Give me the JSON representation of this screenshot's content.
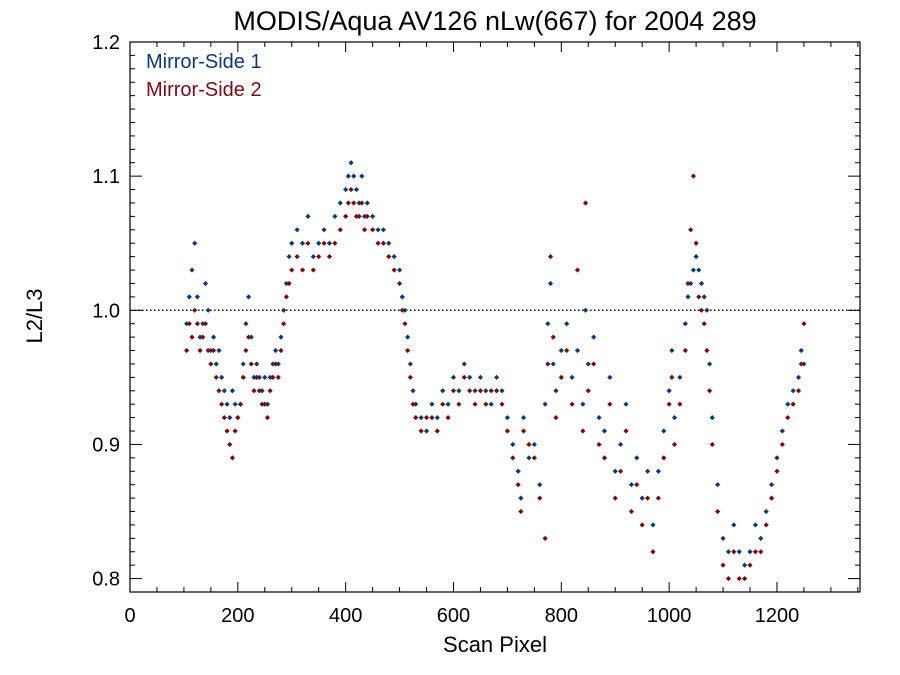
{
  "chart_data": {
    "type": "scatter",
    "title": "MODIS/Aqua AV126 nLw(667) for 2004 289",
    "xlabel": "Scan Pixel",
    "ylabel": "L2/L3",
    "xlim": [
      0,
      1354
    ],
    "ylim": [
      0.79,
      1.2
    ],
    "xticks": [
      0,
      200,
      400,
      600,
      800,
      1000,
      1200
    ],
    "xtick_labels": [
      "0",
      "200",
      "400",
      "600",
      "800",
      "1000",
      "1200"
    ],
    "yticks": [
      0.8,
      0.9,
      1.0,
      1.1,
      1.2
    ],
    "ytick_labels": [
      "0.8",
      "0.9",
      "1.0",
      "1.1",
      "1.2"
    ],
    "reference_line": 1.0,
    "grid": false,
    "legend_position": "top-left",
    "series": [
      {
        "name": "Mirror-Side 1",
        "color": "#0a3a7a",
        "points": [
          [
            105,
            0.99
          ],
          [
            110,
            1.01
          ],
          [
            115,
            1.03
          ],
          [
            120,
            1.05
          ],
          [
            125,
            1.01
          ],
          [
            130,
            0.98
          ],
          [
            135,
            0.99
          ],
          [
            140,
            1.02
          ],
          [
            145,
            1.0
          ],
          [
            150,
            0.97
          ],
          [
            155,
            0.98
          ],
          [
            160,
            0.96
          ],
          [
            165,
            0.97
          ],
          [
            170,
            0.95
          ],
          [
            175,
            0.94
          ],
          [
            180,
            0.93
          ],
          [
            185,
            0.92
          ],
          [
            190,
            0.94
          ],
          [
            195,
            0.93
          ],
          [
            200,
            0.92
          ],
          [
            205,
            0.93
          ],
          [
            210,
            0.96
          ],
          [
            215,
            0.99
          ],
          [
            220,
            1.01
          ],
          [
            225,
            0.98
          ],
          [
            230,
            0.95
          ],
          [
            235,
            0.96
          ],
          [
            240,
            0.95
          ],
          [
            245,
            0.94
          ],
          [
            250,
            0.95
          ],
          [
            255,
            0.93
          ],
          [
            260,
            0.95
          ],
          [
            265,
            0.96
          ],
          [
            270,
            0.97
          ],
          [
            275,
            0.96
          ],
          [
            280,
            0.98
          ],
          [
            285,
            1.0
          ],
          [
            290,
            1.02
          ],
          [
            295,
            1.04
          ],
          [
            300,
            1.05
          ],
          [
            310,
            1.06
          ],
          [
            320,
            1.05
          ],
          [
            330,
            1.07
          ],
          [
            340,
            1.04
          ],
          [
            350,
            1.05
          ],
          [
            360,
            1.06
          ],
          [
            370,
            1.05
          ],
          [
            380,
            1.07
          ],
          [
            390,
            1.08
          ],
          [
            400,
            1.09
          ],
          [
            405,
            1.1
          ],
          [
            410,
            1.11
          ],
          [
            415,
            1.1
          ],
          [
            420,
            1.09
          ],
          [
            425,
            1.08
          ],
          [
            430,
            1.1
          ],
          [
            435,
            1.07
          ],
          [
            440,
            1.08
          ],
          [
            450,
            1.07
          ],
          [
            460,
            1.06
          ],
          [
            470,
            1.06
          ],
          [
            480,
            1.05
          ],
          [
            490,
            1.04
          ],
          [
            500,
            1.03
          ],
          [
            505,
            1.01
          ],
          [
            510,
            1.0
          ],
          [
            515,
            0.98
          ],
          [
            520,
            0.96
          ],
          [
            525,
            0.94
          ],
          [
            530,
            0.93
          ],
          [
            540,
            0.92
          ],
          [
            550,
            0.91
          ],
          [
            560,
            0.93
          ],
          [
            570,
            0.92
          ],
          [
            580,
            0.94
          ],
          [
            590,
            0.93
          ],
          [
            600,
            0.95
          ],
          [
            610,
            0.94
          ],
          [
            620,
            0.96
          ],
          [
            630,
            0.95
          ],
          [
            640,
            0.94
          ],
          [
            650,
            0.95
          ],
          [
            660,
            0.94
          ],
          [
            670,
            0.93
          ],
          [
            680,
            0.95
          ],
          [
            690,
            0.94
          ],
          [
            700,
            0.92
          ],
          [
            710,
            0.9
          ],
          [
            720,
            0.88
          ],
          [
            725,
            0.86
          ],
          [
            730,
            0.92
          ],
          [
            740,
            0.89
          ],
          [
            750,
            0.9
          ],
          [
            760,
            0.87
          ],
          [
            770,
            0.93
          ],
          [
            775,
            0.99
          ],
          [
            780,
            1.02
          ],
          [
            785,
            0.96
          ],
          [
            790,
            0.94
          ],
          [
            800,
            0.97
          ],
          [
            810,
            0.99
          ],
          [
            820,
            0.95
          ],
          [
            830,
            0.97
          ],
          [
            840,
            0.93
          ],
          [
            845,
            1.0
          ],
          [
            850,
            0.96
          ],
          [
            860,
            0.98
          ],
          [
            870,
            0.92
          ],
          [
            880,
            0.91
          ],
          [
            890,
            0.95
          ],
          [
            900,
            0.88
          ],
          [
            910,
            0.9
          ],
          [
            920,
            0.93
          ],
          [
            930,
            0.87
          ],
          [
            940,
            0.89
          ],
          [
            950,
            0.86
          ],
          [
            960,
            0.88
          ],
          [
            970,
            0.84
          ],
          [
            980,
            0.88
          ],
          [
            990,
            0.91
          ],
          [
            1000,
            0.94
          ],
          [
            1005,
            0.97
          ],
          [
            1010,
            0.92
          ],
          [
            1020,
            0.95
          ],
          [
            1030,
            0.99
          ],
          [
            1035,
            1.01
          ],
          [
            1040,
            1.02
          ],
          [
            1045,
            1.03
          ],
          [
            1050,
            1.04
          ],
          [
            1055,
            1.03
          ],
          [
            1060,
            1.02
          ],
          [
            1065,
            1.01
          ],
          [
            1070,
            1.0
          ],
          [
            1075,
            0.96
          ],
          [
            1080,
            0.92
          ],
          [
            1090,
            0.87
          ],
          [
            1100,
            0.83
          ],
          [
            1110,
            0.82
          ],
          [
            1120,
            0.84
          ],
          [
            1130,
            0.82
          ],
          [
            1140,
            0.81
          ],
          [
            1150,
            0.82
          ],
          [
            1160,
            0.84
          ],
          [
            1170,
            0.83
          ],
          [
            1180,
            0.85
          ],
          [
            1190,
            0.87
          ],
          [
            1200,
            0.89
          ],
          [
            1210,
            0.91
          ],
          [
            1220,
            0.93
          ],
          [
            1230,
            0.94
          ],
          [
            1240,
            0.95
          ],
          [
            1245,
            0.97
          ],
          [
            1250,
            0.96
          ]
        ]
      },
      {
        "name": "Mirror-Side 2",
        "color": "#7a0a12",
        "points": [
          [
            105,
            0.97
          ],
          [
            110,
            0.99
          ],
          [
            115,
            0.98
          ],
          [
            120,
            1.0
          ],
          [
            125,
            0.99
          ],
          [
            130,
            0.97
          ],
          [
            135,
            0.98
          ],
          [
            140,
            0.99
          ],
          [
            145,
            0.97
          ],
          [
            150,
            0.96
          ],
          [
            155,
            0.97
          ],
          [
            160,
            0.95
          ],
          [
            165,
            0.94
          ],
          [
            170,
            0.93
          ],
          [
            175,
            0.92
          ],
          [
            180,
            0.91
          ],
          [
            185,
            0.9
          ],
          [
            190,
            0.89
          ],
          [
            195,
            0.91
          ],
          [
            200,
            0.92
          ],
          [
            205,
            0.93
          ],
          [
            210,
            0.95
          ],
          [
            215,
            0.97
          ],
          [
            220,
            0.98
          ],
          [
            225,
            0.96
          ],
          [
            230,
            0.94
          ],
          [
            235,
            0.95
          ],
          [
            240,
            0.94
          ],
          [
            245,
            0.93
          ],
          [
            250,
            0.93
          ],
          [
            255,
            0.92
          ],
          [
            260,
            0.94
          ],
          [
            265,
            0.95
          ],
          [
            270,
            0.96
          ],
          [
            275,
            0.95
          ],
          [
            280,
            0.97
          ],
          [
            285,
            0.99
          ],
          [
            290,
            1.01
          ],
          [
            295,
            1.02
          ],
          [
            300,
            1.03
          ],
          [
            310,
            1.04
          ],
          [
            320,
            1.03
          ],
          [
            330,
            1.05
          ],
          [
            340,
            1.03
          ],
          [
            350,
            1.04
          ],
          [
            360,
            1.05
          ],
          [
            370,
            1.04
          ],
          [
            380,
            1.05
          ],
          [
            390,
            1.06
          ],
          [
            400,
            1.07
          ],
          [
            405,
            1.08
          ],
          [
            410,
            1.09
          ],
          [
            415,
            1.08
          ],
          [
            420,
            1.07
          ],
          [
            425,
            1.07
          ],
          [
            430,
            1.08
          ],
          [
            435,
            1.06
          ],
          [
            440,
            1.07
          ],
          [
            450,
            1.06
          ],
          [
            460,
            1.05
          ],
          [
            470,
            1.05
          ],
          [
            480,
            1.04
          ],
          [
            490,
            1.03
          ],
          [
            500,
            1.02
          ],
          [
            505,
            1.0
          ],
          [
            510,
            0.99
          ],
          [
            515,
            0.97
          ],
          [
            520,
            0.95
          ],
          [
            525,
            0.93
          ],
          [
            530,
            0.92
          ],
          [
            540,
            0.91
          ],
          [
            550,
            0.92
          ],
          [
            560,
            0.92
          ],
          [
            570,
            0.91
          ],
          [
            580,
            0.93
          ],
          [
            590,
            0.92
          ],
          [
            600,
            0.94
          ],
          [
            610,
            0.93
          ],
          [
            620,
            0.95
          ],
          [
            630,
            0.94
          ],
          [
            640,
            0.93
          ],
          [
            650,
            0.94
          ],
          [
            660,
            0.93
          ],
          [
            670,
            0.94
          ],
          [
            680,
            0.94
          ],
          [
            690,
            0.93
          ],
          [
            700,
            0.91
          ],
          [
            710,
            0.89
          ],
          [
            720,
            0.87
          ],
          [
            725,
            0.85
          ],
          [
            730,
            0.91
          ],
          [
            740,
            0.9
          ],
          [
            750,
            0.89
          ],
          [
            760,
            0.86
          ],
          [
            770,
            0.83
          ],
          [
            775,
            0.96
          ],
          [
            780,
            1.04
          ],
          [
            785,
            0.98
          ],
          [
            790,
            0.92
          ],
          [
            800,
            0.95
          ],
          [
            810,
            0.97
          ],
          [
            820,
            0.93
          ],
          [
            830,
            1.03
          ],
          [
            840,
            0.91
          ],
          [
            845,
            1.08
          ],
          [
            850,
            0.94
          ],
          [
            860,
            0.96
          ],
          [
            870,
            0.9
          ],
          [
            880,
            0.89
          ],
          [
            890,
            0.93
          ],
          [
            900,
            0.86
          ],
          [
            910,
            0.88
          ],
          [
            920,
            0.91
          ],
          [
            930,
            0.85
          ],
          [
            940,
            0.87
          ],
          [
            950,
            0.84
          ],
          [
            960,
            0.86
          ],
          [
            970,
            0.82
          ],
          [
            980,
            0.86
          ],
          [
            990,
            0.89
          ],
          [
            1000,
            0.93
          ],
          [
            1005,
            0.95
          ],
          [
            1010,
            0.9
          ],
          [
            1020,
            0.93
          ],
          [
            1030,
            0.97
          ],
          [
            1035,
            1.02
          ],
          [
            1040,
            1.06
          ],
          [
            1045,
            1.1
          ],
          [
            1050,
            1.05
          ],
          [
            1055,
            1.01
          ],
          [
            1060,
            1.0
          ],
          [
            1065,
            0.99
          ],
          [
            1070,
            0.97
          ],
          [
            1075,
            0.94
          ],
          [
            1080,
            0.9
          ],
          [
            1090,
            0.85
          ],
          [
            1100,
            0.81
          ],
          [
            1110,
            0.8
          ],
          [
            1120,
            0.82
          ],
          [
            1130,
            0.8
          ],
          [
            1140,
            0.8
          ],
          [
            1150,
            0.81
          ],
          [
            1160,
            0.82
          ],
          [
            1170,
            0.82
          ],
          [
            1180,
            0.84
          ],
          [
            1190,
            0.86
          ],
          [
            1200,
            0.88
          ],
          [
            1210,
            0.9
          ],
          [
            1220,
            0.92
          ],
          [
            1230,
            0.93
          ],
          [
            1240,
            0.94
          ],
          [
            1245,
            0.96
          ],
          [
            1250,
            0.99
          ]
        ]
      }
    ]
  }
}
